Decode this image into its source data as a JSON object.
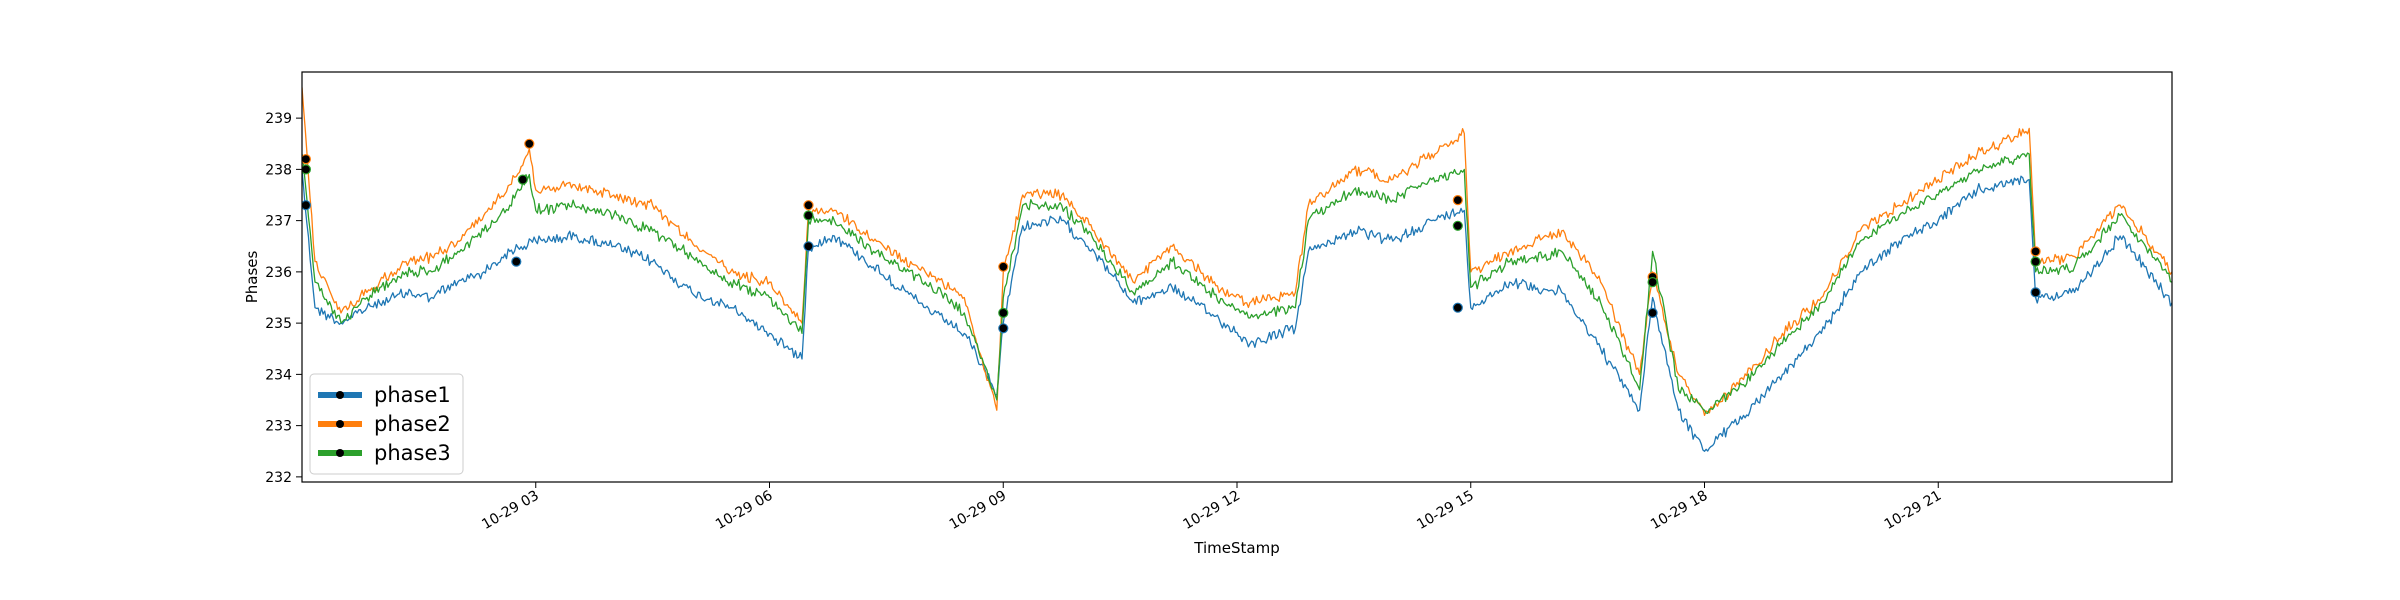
{
  "chart_data": {
    "type": "line",
    "title": "",
    "xlabel": "TimeStamp",
    "ylabel": "Phases",
    "x_axis": {
      "type": "time",
      "start": "10-29 00:00",
      "end": "10-30 00:00",
      "ticks": [
        "10-29 03",
        "10-29 06",
        "10-29 09",
        "10-29 12",
        "10-29 15",
        "10-29 18",
        "10-29 21"
      ]
    },
    "y_axis": {
      "ylim": [
        231.9,
        239.9
      ],
      "ticks": [
        "232",
        "233",
        "234",
        "235",
        "236",
        "237",
        "238",
        "239"
      ]
    },
    "grid": false,
    "legend": {
      "placement": "lower-left",
      "marker": "circle"
    },
    "colors": {
      "phase1": "#1f77b4",
      "phase2": "#ff7f0e",
      "phase3": "#2ca02c",
      "marker": "#000000"
    },
    "series_order_drawn": [
      "phase1",
      "phase2",
      "phase3"
    ],
    "series": [
      {
        "name": "phase1",
        "points": [
          [
            "10-29 00:00",
            238.0
          ],
          [
            "10-29 00:10",
            235.3
          ],
          [
            "10-29 00:30",
            235.0
          ],
          [
            "10-29 00:50",
            235.3
          ],
          [
            "10-29 01:20",
            235.6
          ],
          [
            "10-29 01:40",
            235.5
          ],
          [
            "10-29 02:00",
            235.8
          ],
          [
            "10-29 02:20",
            236.0
          ],
          [
            "10-29 02:40",
            236.4
          ],
          [
            "10-29 03:00",
            236.6
          ],
          [
            "10-29 03:30",
            236.7
          ],
          [
            "10-29 04:00",
            236.5
          ],
          [
            "10-29 04:30",
            236.2
          ],
          [
            "10-29 05:00",
            235.6
          ],
          [
            "10-29 05:30",
            235.3
          ],
          [
            "10-29 06:00",
            234.8
          ],
          [
            "10-29 06:25",
            234.3
          ],
          [
            "10-29 06:30",
            236.5
          ],
          [
            "10-29 06:50",
            236.7
          ],
          [
            "10-29 07:20",
            236.1
          ],
          [
            "10-29 08:00",
            235.3
          ],
          [
            "10-29 08:30",
            234.8
          ],
          [
            "10-29 08:55",
            233.6
          ],
          [
            "10-29 09:00",
            235.0
          ],
          [
            "10-29 09:15",
            236.9
          ],
          [
            "10-29 09:45",
            237.0
          ],
          [
            "10-29 10:10",
            236.4
          ],
          [
            "10-29 10:40",
            235.4
          ],
          [
            "10-29 11:10",
            235.7
          ],
          [
            "10-29 11:50",
            235.0
          ],
          [
            "10-29 12:10",
            234.6
          ],
          [
            "10-29 12:45",
            234.9
          ],
          [
            "10-29 12:55",
            236.4
          ],
          [
            "10-29 13:30",
            236.8
          ],
          [
            "10-29 14:00",
            236.6
          ],
          [
            "10-29 14:30",
            237.0
          ],
          [
            "10-29 14:55",
            237.2
          ],
          [
            "10-29 15:00",
            235.3
          ],
          [
            "10-29 15:30",
            235.8
          ],
          [
            "10-29 16:10",
            235.6
          ],
          [
            "10-29 16:40",
            234.5
          ],
          [
            "10-29 17:10",
            233.3
          ],
          [
            "10-29 17:20",
            235.5
          ],
          [
            "10-29 17:40",
            233.3
          ],
          [
            "10-29 18:00",
            232.5
          ],
          [
            "10-29 18:30",
            233.2
          ],
          [
            "10-29 19:00",
            234.0
          ],
          [
            "10-29 19:30",
            234.8
          ],
          [
            "10-29 20:00",
            236.0
          ],
          [
            "10-29 20:30",
            236.6
          ],
          [
            "10-29 21:00",
            237.0
          ],
          [
            "10-29 21:30",
            237.6
          ],
          [
            "10-29 22:10",
            237.8
          ],
          [
            "10-29 22:15",
            235.5
          ],
          [
            "10-29 22:45",
            235.6
          ],
          [
            "10-29 23:20",
            236.7
          ],
          [
            "10-30 00:00",
            235.4
          ]
        ]
      },
      {
        "name": "phase2",
        "points": [
          [
            "10-29 00:00",
            239.6
          ],
          [
            "10-29 00:10",
            236.2
          ],
          [
            "10-29 00:30",
            235.2
          ],
          [
            "10-29 00:50",
            235.6
          ],
          [
            "10-29 01:20",
            236.2
          ],
          [
            "10-29 01:40",
            236.3
          ],
          [
            "10-29 02:00",
            236.6
          ],
          [
            "10-29 02:20",
            237.1
          ],
          [
            "10-29 02:40",
            237.7
          ],
          [
            "10-29 02:55",
            238.4
          ],
          [
            "10-29 03:00",
            237.6
          ],
          [
            "10-29 03:30",
            237.7
          ],
          [
            "10-29 04:00",
            237.5
          ],
          [
            "10-29 04:30",
            237.3
          ],
          [
            "10-29 05:00",
            236.6
          ],
          [
            "10-29 05:30",
            236.0
          ],
          [
            "10-29 06:00",
            235.8
          ],
          [
            "10-29 06:25",
            235.0
          ],
          [
            "10-29 06:30",
            237.2
          ],
          [
            "10-29 06:50",
            237.2
          ],
          [
            "10-29 07:20",
            236.6
          ],
          [
            "10-29 08:00",
            236.0
          ],
          [
            "10-29 08:30",
            235.5
          ],
          [
            "10-29 08:55",
            233.3
          ],
          [
            "10-29 09:00",
            236.0
          ],
          [
            "10-29 09:15",
            237.5
          ],
          [
            "10-29 09:45",
            237.5
          ],
          [
            "10-29 10:10",
            236.8
          ],
          [
            "10-29 10:40",
            235.8
          ],
          [
            "10-29 11:10",
            236.5
          ],
          [
            "10-29 11:50",
            235.6
          ],
          [
            "10-29 12:10",
            235.4
          ],
          [
            "10-29 12:45",
            235.6
          ],
          [
            "10-29 12:55",
            237.3
          ],
          [
            "10-29 13:30",
            238.0
          ],
          [
            "10-29 14:00",
            237.8
          ],
          [
            "10-29 14:30",
            238.3
          ],
          [
            "10-29 14:55",
            238.7
          ],
          [
            "10-29 15:00",
            236.0
          ],
          [
            "10-29 15:30",
            236.4
          ],
          [
            "10-29 16:10",
            236.8
          ],
          [
            "10-29 16:40",
            235.8
          ],
          [
            "10-29 17:10",
            234.0
          ],
          [
            "10-29 17:20",
            236.0
          ],
          [
            "10-29 17:40",
            234.0
          ],
          [
            "10-29 18:00",
            233.2
          ],
          [
            "10-29 18:30",
            233.9
          ],
          [
            "10-29 19:00",
            234.8
          ],
          [
            "10-29 19:30",
            235.5
          ],
          [
            "10-29 20:00",
            236.8
          ],
          [
            "10-29 20:30",
            237.3
          ],
          [
            "10-29 21:00",
            237.8
          ],
          [
            "10-29 21:30",
            238.3
          ],
          [
            "10-29 22:10",
            238.8
          ],
          [
            "10-29 22:15",
            236.2
          ],
          [
            "10-29 22:45",
            236.3
          ],
          [
            "10-29 23:20",
            237.3
          ],
          [
            "10-30 00:00",
            236.0
          ]
        ]
      },
      {
        "name": "phase3",
        "points": [
          [
            "10-29 00:00",
            238.3
          ],
          [
            "10-29 00:10",
            235.8
          ],
          [
            "10-29 00:30",
            235.0
          ],
          [
            "10-29 00:50",
            235.5
          ],
          [
            "10-29 01:20",
            236.0
          ],
          [
            "10-29 01:40",
            236.0
          ],
          [
            "10-29 02:00",
            236.4
          ],
          [
            "10-29 02:20",
            236.8
          ],
          [
            "10-29 02:40",
            237.3
          ],
          [
            "10-29 02:55",
            237.9
          ],
          [
            "10-29 03:00",
            237.2
          ],
          [
            "10-29 03:30",
            237.3
          ],
          [
            "10-29 04:00",
            237.1
          ],
          [
            "10-29 04:30",
            236.8
          ],
          [
            "10-29 05:00",
            236.3
          ],
          [
            "10-29 05:30",
            235.8
          ],
          [
            "10-29 06:00",
            235.5
          ],
          [
            "10-29 06:25",
            234.8
          ],
          [
            "10-29 06:30",
            237.0
          ],
          [
            "10-29 06:50",
            237.0
          ],
          [
            "10-29 07:20",
            236.4
          ],
          [
            "10-29 08:00",
            235.8
          ],
          [
            "10-29 08:30",
            235.2
          ],
          [
            "10-29 08:55",
            233.5
          ],
          [
            "10-29 09:00",
            235.5
          ],
          [
            "10-29 09:15",
            237.3
          ],
          [
            "10-29 09:45",
            237.3
          ],
          [
            "10-29 10:10",
            236.6
          ],
          [
            "10-29 10:40",
            235.6
          ],
          [
            "10-29 11:10",
            236.2
          ],
          [
            "10-29 11:50",
            235.4
          ],
          [
            "10-29 12:10",
            235.1
          ],
          [
            "10-29 12:45",
            235.3
          ],
          [
            "10-29 12:55",
            237.0
          ],
          [
            "10-29 13:30",
            237.6
          ],
          [
            "10-29 14:00",
            237.4
          ],
          [
            "10-29 14:30",
            237.8
          ],
          [
            "10-29 14:55",
            238.0
          ],
          [
            "10-29 15:00",
            235.7
          ],
          [
            "10-29 15:30",
            236.2
          ],
          [
            "10-29 16:10",
            236.4
          ],
          [
            "10-29 16:40",
            235.4
          ],
          [
            "10-29 17:10",
            233.7
          ],
          [
            "10-29 17:20",
            236.4
          ],
          [
            "10-29 17:40",
            233.7
          ],
          [
            "10-29 18:00",
            233.3
          ],
          [
            "10-29 18:30",
            233.8
          ],
          [
            "10-29 19:00",
            234.6
          ],
          [
            "10-29 19:30",
            235.4
          ],
          [
            "10-29 20:00",
            236.6
          ],
          [
            "10-29 20:30",
            237.1
          ],
          [
            "10-29 21:00",
            237.5
          ],
          [
            "10-29 21:30",
            238.0
          ],
          [
            "10-29 22:10",
            238.3
          ],
          [
            "10-29 22:15",
            236.0
          ],
          [
            "10-29 22:45",
            236.1
          ],
          [
            "10-29 23:20",
            237.1
          ],
          [
            "10-30 00:00",
            235.8
          ]
        ]
      }
    ],
    "markers": {
      "phase1": [
        [
          "10-29 00:03",
          237.3
        ],
        [
          "10-29 02:45",
          236.2
        ],
        [
          "10-29 06:30",
          236.5
        ],
        [
          "10-29 09:00",
          234.9
        ],
        [
          "10-29 14:50",
          235.3
        ],
        [
          "10-29 17:20",
          235.2
        ],
        [
          "10-29 22:15",
          235.6
        ]
      ],
      "phase2": [
        [
          "10-29 00:03",
          238.2
        ],
        [
          "10-29 02:55",
          238.5
        ],
        [
          "10-29 06:30",
          237.3
        ],
        [
          "10-29 09:00",
          236.1
        ],
        [
          "10-29 14:50",
          237.4
        ],
        [
          "10-29 17:20",
          235.9
        ],
        [
          "10-29 22:15",
          236.4
        ]
      ],
      "phase3": [
        [
          "10-29 00:03",
          238.0
        ],
        [
          "10-29 02:50",
          237.8
        ],
        [
          "10-29 06:30",
          237.1
        ],
        [
          "10-29 09:00",
          235.2
        ],
        [
          "10-29 14:50",
          236.9
        ],
        [
          "10-29 17:20",
          235.8
        ],
        [
          "10-29 22:15",
          236.2
        ]
      ]
    }
  }
}
